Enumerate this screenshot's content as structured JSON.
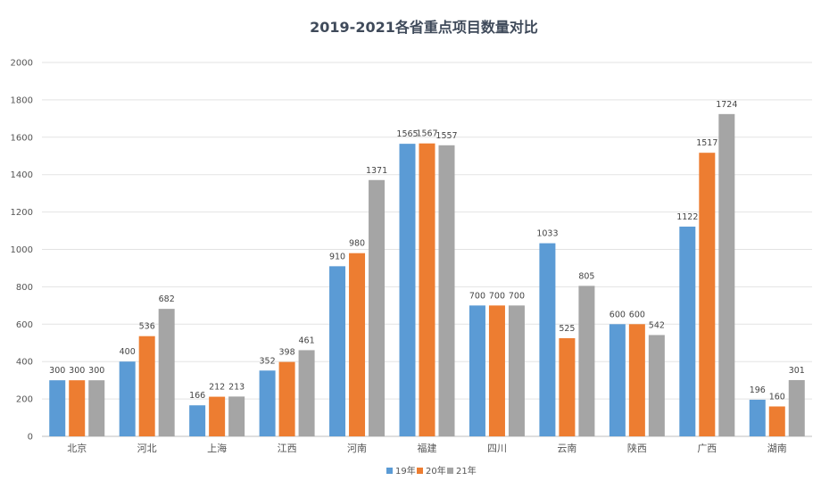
{
  "chart_data": {
    "type": "bar",
    "title": "2019-2021各省重点项目数量对比",
    "xlabel": "",
    "ylabel": "",
    "ylim": [
      0,
      2000
    ],
    "yticks": [
      0,
      200,
      400,
      600,
      800,
      1000,
      1200,
      1400,
      1600,
      1800,
      2000
    ],
    "grid": true,
    "legend_position": "bottom",
    "categories": [
      "北京",
      "河北",
      "上海",
      "江西",
      "河南",
      "福建",
      "四川",
      "云南",
      "陕西",
      "广西",
      "湖南"
    ],
    "series": [
      {
        "name": "19年",
        "color": "#5b9bd5",
        "values": [
          300,
          400,
          166,
          352,
          910,
          1565,
          700,
          1033,
          600,
          1122,
          196
        ]
      },
      {
        "name": "20年",
        "color": "#ed7d31",
        "values": [
          300,
          536,
          212,
          398,
          980,
          1567,
          700,
          525,
          600,
          1517,
          160
        ]
      },
      {
        "name": "21年",
        "color": "#a5a5a5",
        "values": [
          300,
          682,
          213,
          461,
          1371,
          1557,
          700,
          805,
          542,
          1724,
          301
        ]
      }
    ]
  }
}
